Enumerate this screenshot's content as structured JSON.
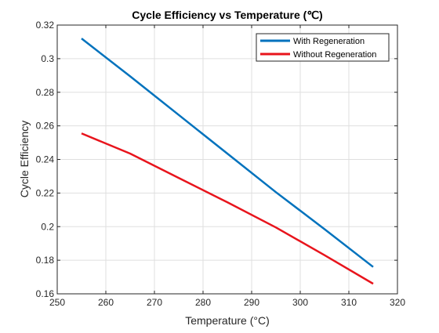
{
  "chart_data": {
    "type": "line",
    "title": "Cycle Efficiency vs Temperature (℃)",
    "xlabel": "Temperature (°C)",
    "ylabel": "Cycle Efficiency",
    "xlim": [
      250,
      320
    ],
    "ylim": [
      0.16,
      0.32
    ],
    "xticks": [
      250,
      260,
      270,
      280,
      290,
      300,
      310,
      320
    ],
    "yticks": [
      0.16,
      0.18,
      0.2,
      0.22,
      0.24,
      0.26,
      0.28,
      0.3,
      0.32
    ],
    "xtick_labels": [
      "250",
      "260",
      "270",
      "280",
      "290",
      "300",
      "310",
      "320"
    ],
    "ytick_labels": [
      "0.16",
      "0.18",
      "0.2",
      "0.22",
      "0.24",
      "0.26",
      "0.28",
      "0.3",
      "0.32"
    ],
    "grid": true,
    "legend_position": "top-right",
    "series": [
      {
        "name": "With Regeneration",
        "color": "#0072BD",
        "x": [
          255,
          265,
          275,
          285,
          295,
          305,
          315
        ],
        "y": [
          0.312,
          0.2895,
          0.2665,
          0.2435,
          0.2205,
          0.1985,
          0.176
        ]
      },
      {
        "name": "Without Regeneration",
        "color": "#E8141C",
        "x": [
          255,
          265,
          275,
          285,
          295,
          305,
          315
        ],
        "y": [
          0.2555,
          0.2435,
          0.229,
          0.2145,
          0.1995,
          0.183,
          0.166
        ]
      }
    ]
  }
}
